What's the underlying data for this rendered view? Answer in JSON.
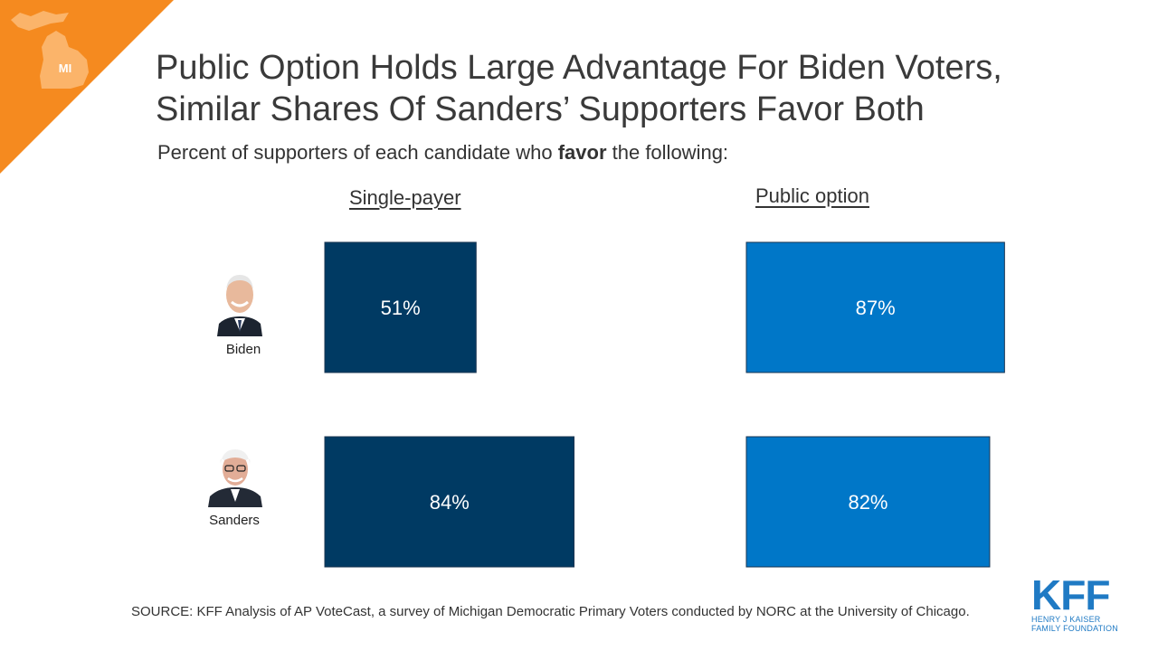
{
  "corner_badge": {
    "label": "MI",
    "color": "#f58a1f"
  },
  "title_lines": [
    "Public Option Holds Large Advantage For Biden Voters,",
    "Similar Shares Of Sanders’ Supporters Favor Both"
  ],
  "subtitle": {
    "prefix": "Percent of supporters of each candidate who ",
    "bold": "favor",
    "suffix": " the following:"
  },
  "chart_data": {
    "type": "bar",
    "panels": [
      {
        "name": "Single-payer",
        "color": "#003a63"
      },
      {
        "name": "Public option",
        "color": "#0077c8"
      }
    ],
    "categories": [
      "Biden",
      "Sanders"
    ],
    "series": [
      {
        "name": "Single-payer",
        "values": [
          51,
          84
        ],
        "labels": [
          "51%",
          "84%"
        ]
      },
      {
        "name": "Public option",
        "values": [
          87,
          82
        ],
        "labels": [
          "87%",
          "82%"
        ]
      }
    ],
    "xlim": [
      0,
      100
    ],
    "grid": false
  },
  "candidates": [
    {
      "name": "Biden",
      "icon": "biden-portrait"
    },
    {
      "name": "Sanders",
      "icon": "sanders-portrait"
    }
  ],
  "source": "SOURCE: KFF Analysis of AP VoteCast, a survey of Michigan Democratic Primary Voters conducted by NORC at the University  of Chicago.",
  "logo": {
    "mark": "KFF",
    "line1": "HENRY J KAISER",
    "line2": "FAMILY FOUNDATION"
  }
}
